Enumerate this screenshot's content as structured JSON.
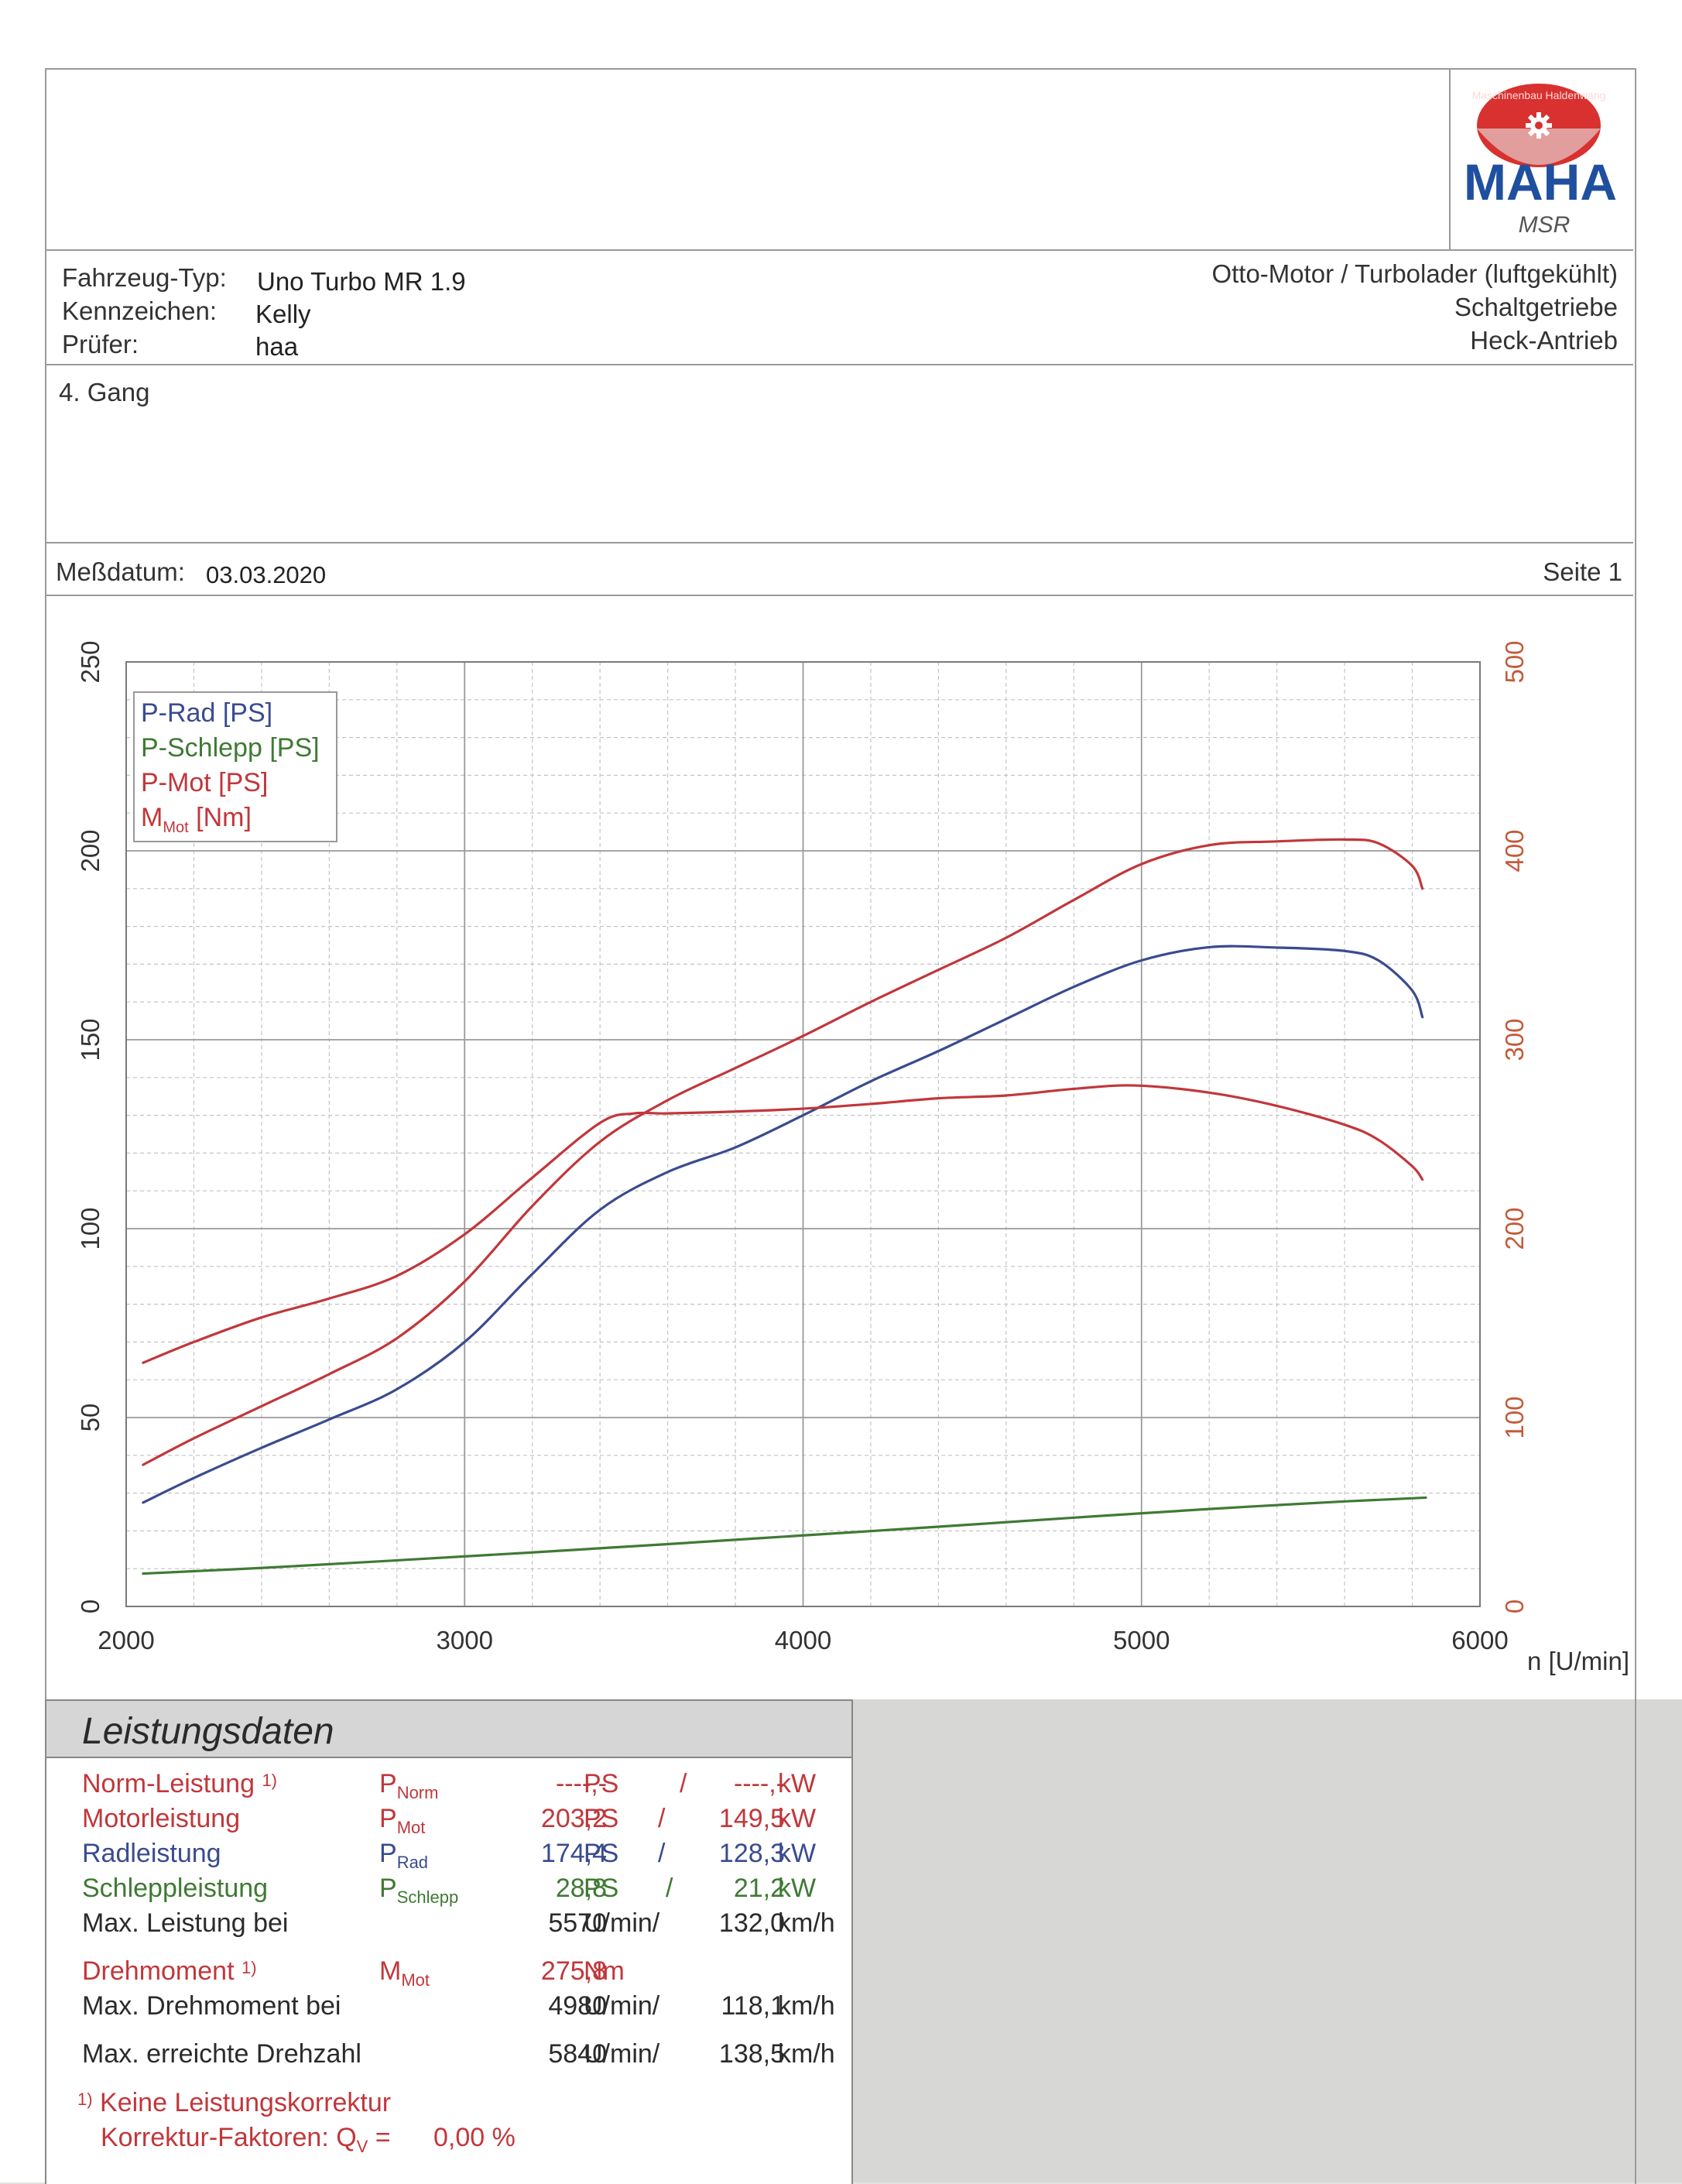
{
  "header": {
    "vehicle_type_label": "Fahrzeug-Typ:",
    "vehicle_type": "Uno Turbo MR 1.9",
    "plate_label": "Kennzeichen:",
    "plate": "Kelly",
    "inspector_label": "Prüfer:",
    "inspector": "haa",
    "engine": "Otto-Motor / Turbolader (luftgekühlt)",
    "gearbox": "Schaltgetriebe",
    "drive": "Heck-Antrieb",
    "gear": "4. Gang",
    "date_label": "Meßdatum:",
    "date": "03.03.2020",
    "page": "Seite 1"
  },
  "logo": {
    "text": "MAHA",
    "sub": "MSR",
    "ring_text": "Maschinenbau Haldenwang",
    "colors": {
      "red": "#d8312f",
      "blue": "#1f4f9f"
    }
  },
  "chart_data": {
    "type": "line",
    "x_unit_label": "n [U/min]",
    "xlim": [
      2000,
      6000
    ],
    "ylim_left": [
      0,
      250
    ],
    "ylim_right": [
      0,
      500
    ],
    "x_ticks": [
      "2000",
      "3000",
      "4000",
      "5000",
      "6000"
    ],
    "y_ticks_left": [
      "0",
      "50",
      "100",
      "150",
      "200",
      "250"
    ],
    "y_ticks_right": [
      "0",
      "100",
      "200",
      "300",
      "400",
      "500"
    ],
    "grid": true,
    "legend_position": "top-left",
    "series": [
      {
        "name": "P-Rad [PS]",
        "axis": "left",
        "color": "#3a4b8f",
        "x": [
          2050,
          2200,
          2400,
          2600,
          2800,
          3000,
          3200,
          3400,
          3600,
          3800,
          4000,
          4200,
          4400,
          4600,
          4800,
          5000,
          5200,
          5400,
          5600,
          5700,
          5800,
          5830
        ],
        "y": [
          27.5,
          34,
          42,
          49.5,
          57.5,
          70,
          88,
          105,
          115,
          121.5,
          130,
          139,
          147,
          155.5,
          164,
          171,
          174.5,
          174.4,
          173.5,
          171,
          163,
          156
        ]
      },
      {
        "name": "P-Schlepp [PS]",
        "axis": "left",
        "color": "#3f7a34",
        "x": [
          2050,
          2400,
          2800,
          3200,
          3600,
          4000,
          4400,
          4800,
          5200,
          5600,
          5840
        ],
        "y": [
          8.7,
          10.2,
          12.2,
          14.3,
          16.5,
          18.8,
          21.1,
          23.5,
          25.8,
          27.8,
          28.8
        ]
      },
      {
        "name": "P-Mot [PS]",
        "axis": "left",
        "color": "#c1373b",
        "x": [
          2050,
          2200,
          2400,
          2600,
          2800,
          3000,
          3200,
          3400,
          3600,
          3800,
          4000,
          4200,
          4400,
          4600,
          4800,
          5000,
          5200,
          5400,
          5600,
          5700,
          5800,
          5830
        ],
        "y": [
          37.5,
          44.5,
          53,
          61.5,
          71,
          86,
          106,
          123,
          134,
          142.5,
          151,
          160,
          168.5,
          177,
          187,
          196.5,
          201.5,
          202.5,
          203,
          202,
          196,
          190
        ]
      },
      {
        "name": "M_Mot [Nm]",
        "axis": "right",
        "color": "#c1373b",
        "x": [
          2050,
          2200,
          2400,
          2600,
          2800,
          3000,
          3200,
          3400,
          3500,
          3600,
          3800,
          4000,
          4200,
          4400,
          4600,
          4800,
          4980,
          5200,
          5400,
          5600,
          5700,
          5800,
          5830
        ],
        "y": [
          129,
          140,
          153,
          163,
          175,
          197,
          227,
          256,
          261,
          261,
          262,
          263.5,
          266,
          269,
          270.5,
          274,
          275.8,
          272,
          265,
          255,
          247,
          233,
          226
        ]
      }
    ]
  },
  "legend": {
    "p_rad": "P-Rad [PS]",
    "p_schlepp": "P-Schlepp [PS]",
    "p_mot": "P-Mot [PS]",
    "m_mot_main": "M",
    "m_mot_sub": "Mot",
    "m_mot_unit": " [Nm]"
  },
  "performance": {
    "title": "Leistungsdaten",
    "rows": {
      "norm": {
        "label": "Norm-Leistung",
        "footnote": "1)",
        "sym": "P",
        "sym_sub": "Norm",
        "ps": "----,-",
        "ps_unit": "PS",
        "sep": "/",
        "kw": "----,-",
        "kw_unit": "kW"
      },
      "motor": {
        "label": "Motorleistung",
        "sym": "P",
        "sym_sub": "Mot",
        "ps": "203,2",
        "ps_unit": "PS",
        "sep": "/",
        "kw": "149,5",
        "kw_unit": "kW"
      },
      "rad": {
        "label": "Radleistung",
        "sym": "P",
        "sym_sub": "Rad",
        "ps": "174,4",
        "ps_unit": "PS",
        "sep": "/",
        "kw": "128,3",
        "kw_unit": "kW"
      },
      "schlepp": {
        "label": "Schleppleistung",
        "sym": "P",
        "sym_sub": "Schlepp",
        "ps": "28,8",
        "ps_unit": "PS",
        "sep": "/",
        "kw": "21,2",
        "kw_unit": "kW"
      },
      "max_power_at": {
        "label": "Max. Leistung bei",
        "rpm": "5570",
        "rpm_unit": "U/min/",
        "speed": "132,0",
        "speed_unit": "km/h"
      },
      "torque": {
        "label": "Drehmoment",
        "footnote": "1)",
        "sym": "M",
        "sym_sub": "Mot",
        "value": "275,8",
        "unit": "Nm"
      },
      "max_torque_at": {
        "label": "Max. Drehmoment bei",
        "rpm": "4980",
        "rpm_unit": "U/min/",
        "speed": "118,1",
        "speed_unit": "km/h"
      },
      "max_rpm": {
        "label": "Max. erreichte Drehzahl",
        "rpm": "5840",
        "rpm_unit": "U/min/",
        "speed": "138,5",
        "speed_unit": "km/h"
      }
    },
    "footnote": {
      "mark": "1)",
      "text": "Keine Leistungskorrektur",
      "factor_label": "Korrektur-Faktoren: Q",
      "factor_sub": "V",
      "factor_eq": " =",
      "factor_value": "0,00 %"
    }
  }
}
